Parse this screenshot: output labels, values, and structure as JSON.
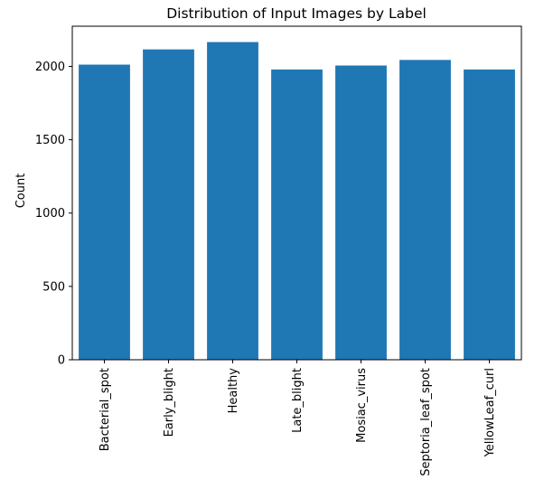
{
  "chart_data": {
    "type": "bar",
    "title": "Distribution of Input Images by Label",
    "xlabel": "",
    "ylabel": "Count",
    "categories": [
      "Bacterial_spot",
      "Early_blight",
      "Healthy",
      "Late_blight",
      "Mosiac_virus",
      "Septoria_leaf_spot",
      "YellowLeaf_curl"
    ],
    "values": [
      2012,
      2116,
      2166,
      1979,
      2006,
      2044,
      1979
    ],
    "ylim": [
      0,
      2274
    ],
    "yticks": [
      0,
      500,
      1000,
      1500,
      2000
    ],
    "bar_color": "#1f77b4",
    "grid": false
  }
}
